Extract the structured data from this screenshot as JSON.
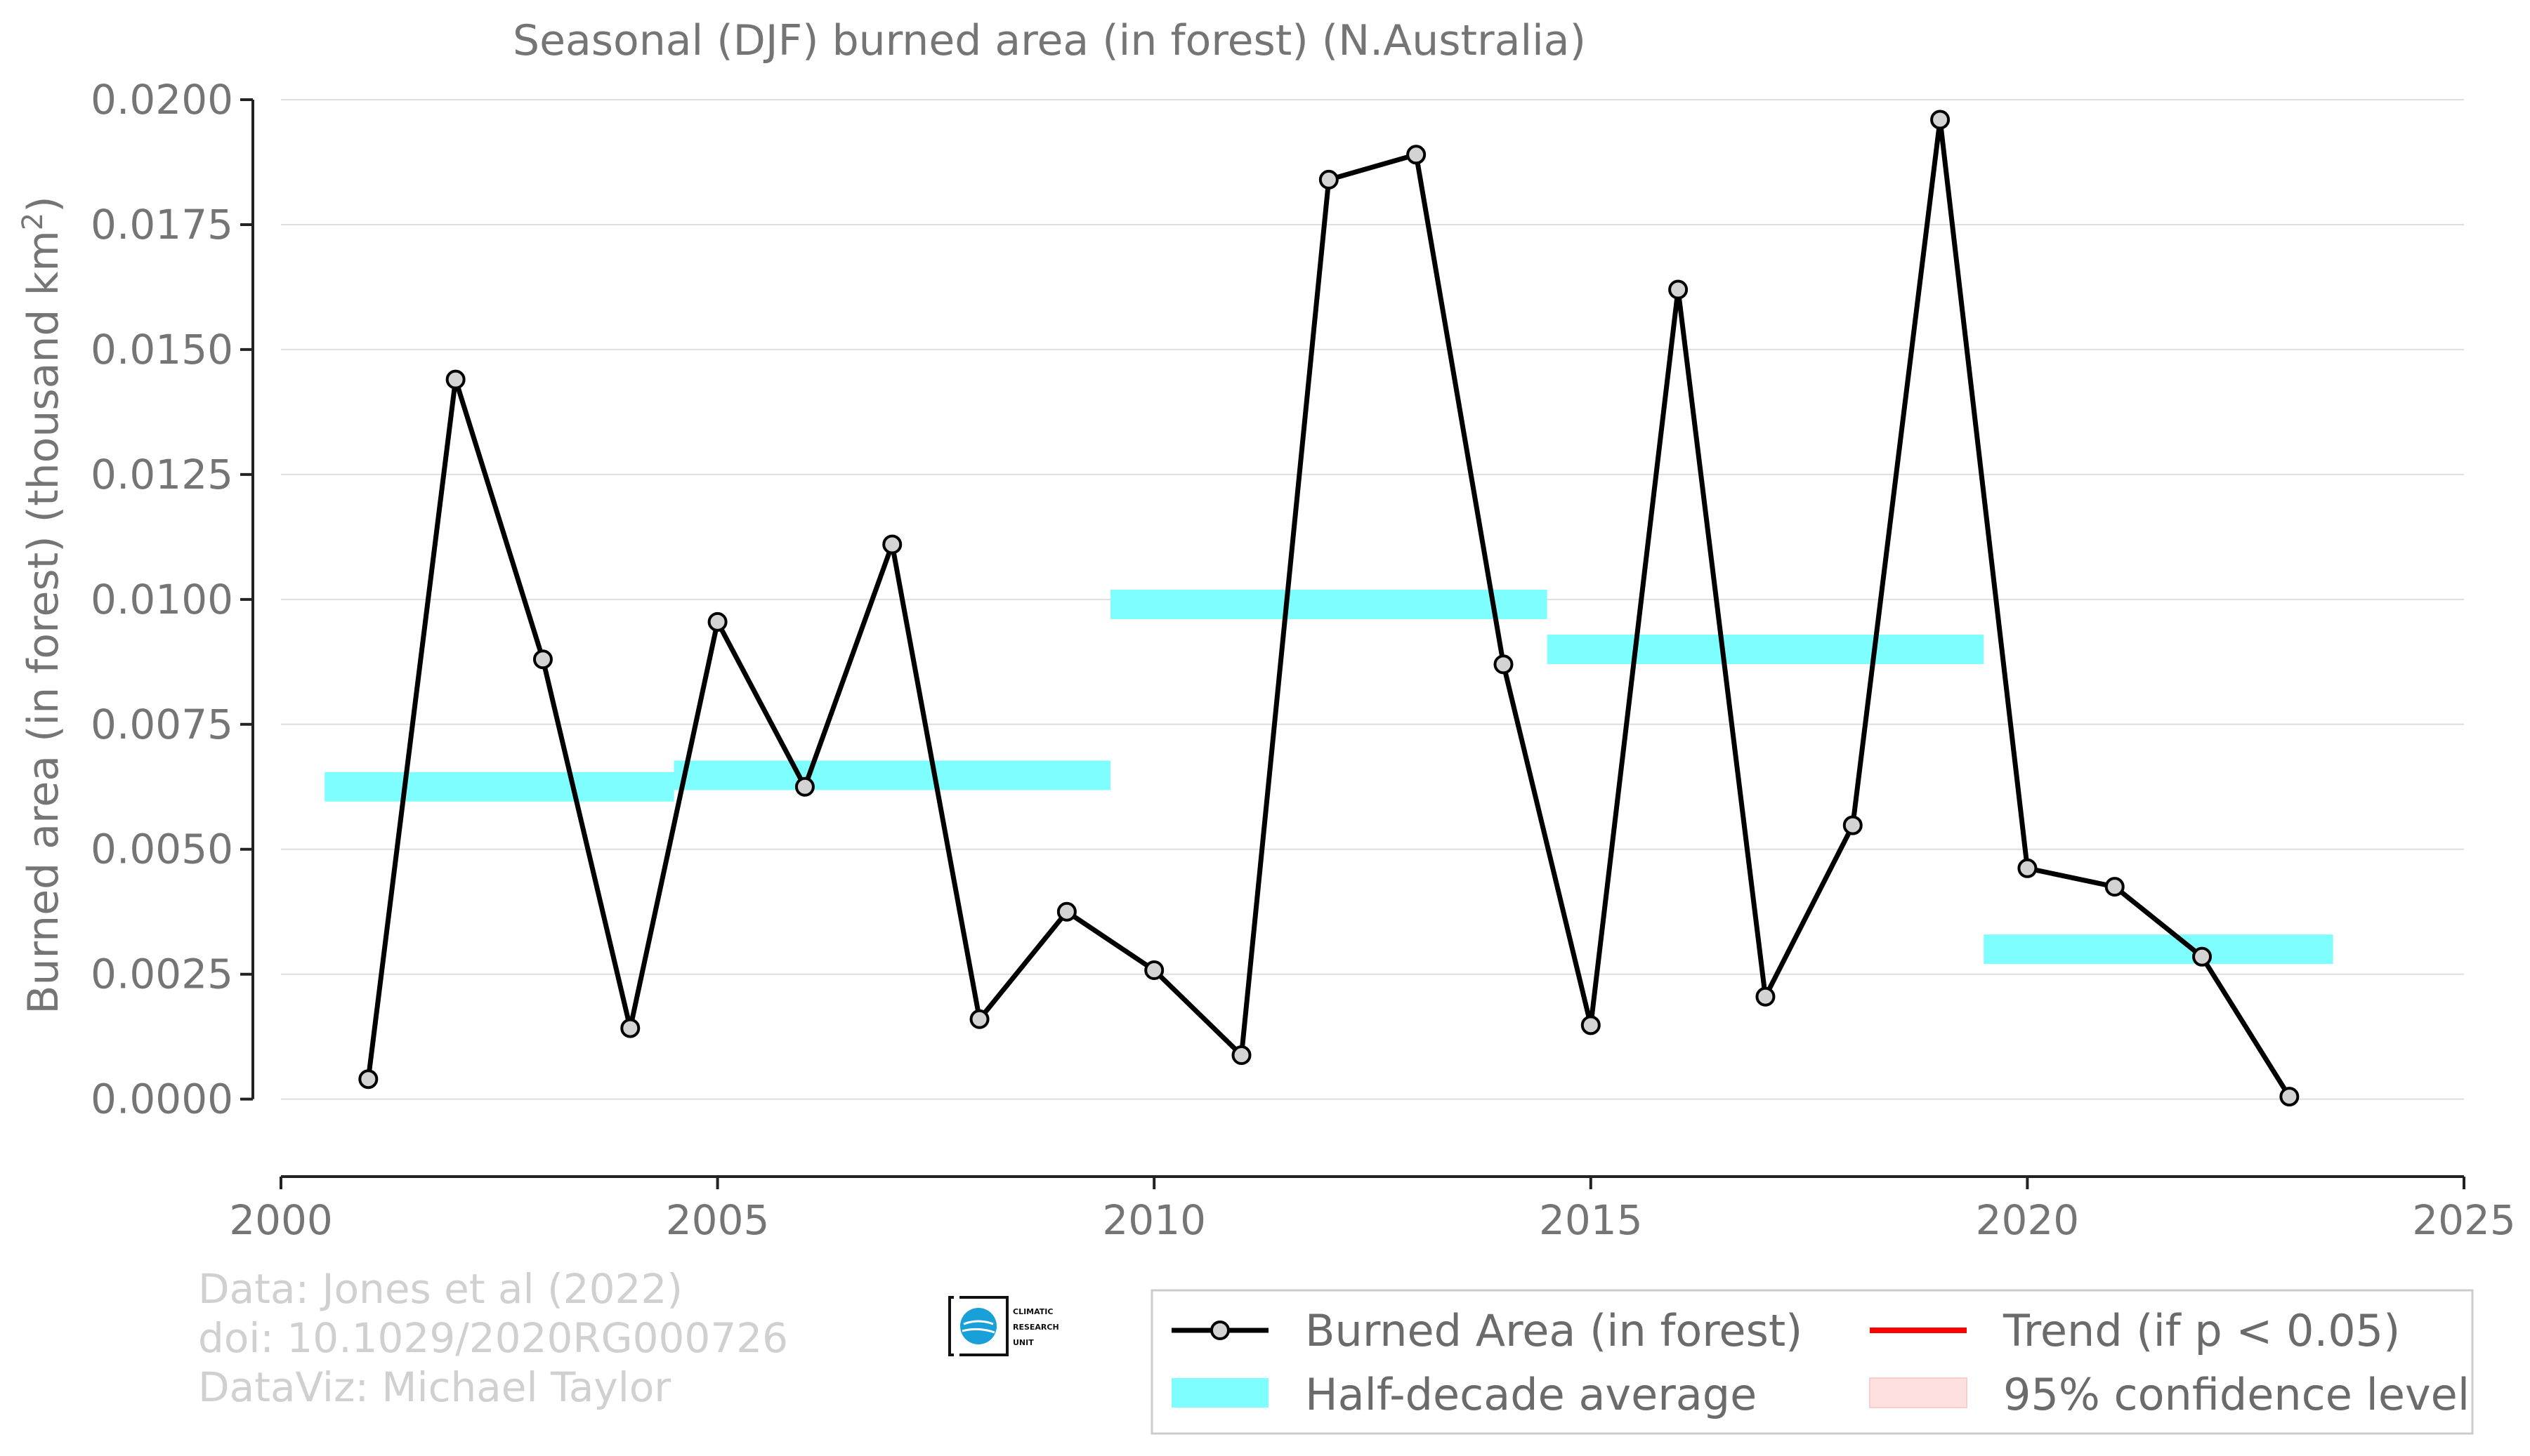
{
  "chart_data": {
    "type": "line",
    "title": "Seasonal (DJF) burned area (in forest) (N.Australia)",
    "ylabel": "Burned area (in forest) (thousand km",
    "ylabel_sup": "2",
    "ylabel_close": ")",
    "xlabel": "",
    "xlim": [
      2000,
      2025
    ],
    "ylim": [
      -0.00155,
      0.02
    ],
    "x_ticks": [
      2000,
      2005,
      2010,
      2015,
      2020,
      2025
    ],
    "x_tick_labels": [
      "2000",
      "2005",
      "2010",
      "2015",
      "2020",
      "2025"
    ],
    "y_ticks": [
      0.0,
      0.0025,
      0.005,
      0.0075,
      0.01,
      0.0125,
      0.015,
      0.0175,
      0.02
    ],
    "y_tick_labels": [
      "0.0000",
      "0.0025",
      "0.0050",
      "0.0075",
      "0.0100",
      "0.0125",
      "0.0150",
      "0.0175",
      "0.0200"
    ],
    "grid": true,
    "series": [
      {
        "name": "Burned Area (in forest)",
        "color": "#000000",
        "marker_fill": "#d3d3d3",
        "x": [
          2001,
          2002,
          2003,
          2004,
          2005,
          2006,
          2007,
          2008,
          2009,
          2010,
          2011,
          2012,
          2013,
          2014,
          2015,
          2016,
          2017,
          2018,
          2019,
          2020,
          2021,
          2022,
          2023
        ],
        "y": [
          0.0004,
          0.0144,
          0.0088,
          0.00142,
          0.00955,
          0.00625,
          0.0111,
          0.0016,
          0.00375,
          0.00258,
          0.00088,
          0.0184,
          0.0189,
          0.0087,
          0.00148,
          0.0162,
          0.00205,
          0.00548,
          0.0196,
          0.00462,
          0.00425,
          0.00285,
          5e-05
        ]
      }
    ],
    "half_decade_averages": {
      "name": "Half-decade average",
      "color": "#7ffeff",
      "segments": [
        {
          "x0": 2000.5,
          "x1": 2004.5,
          "y": 0.00625
        },
        {
          "x0": 2004.5,
          "x1": 2009.5,
          "y": 0.00648
        },
        {
          "x0": 2009.5,
          "x1": 2014.5,
          "y": 0.0099
        },
        {
          "x0": 2014.5,
          "x1": 2019.5,
          "y": 0.009
        },
        {
          "x0": 2019.5,
          "x1": 2023.5,
          "y": 0.003
        }
      ]
    },
    "legend": {
      "placement": "bottom-right",
      "entries": [
        {
          "label": "Burned Area (in forest)",
          "kind": "line-marker",
          "color": "#000000"
        },
        {
          "label": "Trend (if p < 0.05)",
          "kind": "line",
          "color": "#ff0000"
        },
        {
          "label": "Half-decade average",
          "kind": "band",
          "color": "#7ffeff"
        },
        {
          "label": "95% confidence level",
          "kind": "band",
          "color": "#ffe0e0"
        }
      ]
    },
    "credits": [
      "Data: Jones et al (2022)",
      "doi: 10.1029/2020RG000726",
      "DataViz: Michael Taylor"
    ],
    "logo": {
      "name": "climatic-research-unit-logo",
      "lines": [
        "CLIMATIC",
        "RESEARCH",
        "UNIT"
      ],
      "accent_color": "#1aa0d8"
    }
  }
}
